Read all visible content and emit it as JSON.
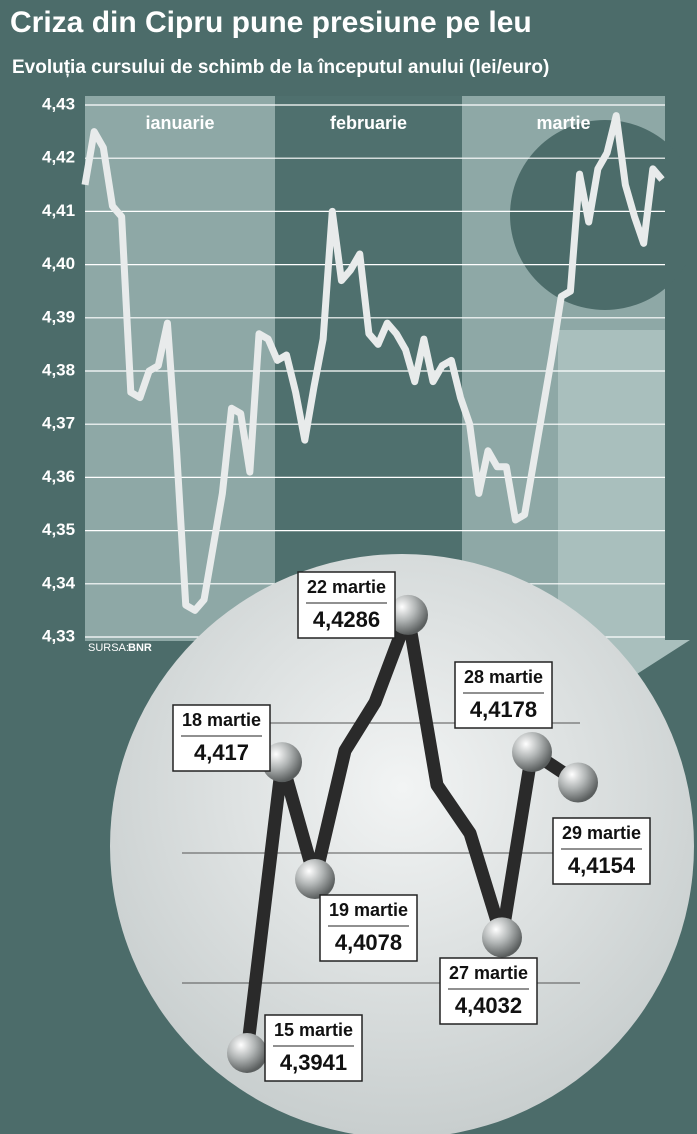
{
  "chart_data": [
    {
      "type": "line",
      "title": "Criza din Cipru pune presiune pe leu",
      "subtitle": "Evoluția cursului de schimb de la începutul anului (lei/euro)",
      "months": [
        "ianuarie",
        "februarie",
        "martie"
      ],
      "source_label": "SURSA:",
      "source": "BNR",
      "values": [
        4.415,
        4.425,
        4.422,
        4.411,
        4.409,
        4.376,
        4.375,
        4.38,
        4.381,
        4.389,
        4.365,
        4.336,
        4.335,
        4.337,
        4.347,
        4.357,
        4.373,
        4.372,
        4.361,
        4.387,
        4.386,
        4.382,
        4.383,
        4.376,
        4.367,
        4.377,
        4.386,
        4.41,
        4.397,
        4.399,
        4.402,
        4.387,
        4.385,
        4.389,
        4.387,
        4.384,
        4.378,
        4.386,
        4.378,
        4.381,
        4.382,
        4.375,
        4.37,
        4.357,
        4.365,
        4.362,
        4.362,
        4.352,
        4.353,
        4.363,
        4.373,
        4.383,
        4.394,
        4.395,
        4.417,
        4.408,
        4.418,
        4.421,
        4.428,
        4.415,
        4.409,
        4.404,
        4.418,
        4.416
      ],
      "color": "#e8ebeb",
      "ylim": [
        4.33,
        4.43
      ],
      "yticks": [
        {
          "value": 4.33,
          "label": "4,33"
        },
        {
          "value": 4.34,
          "label": "4,34"
        },
        {
          "value": 4.35,
          "label": "4,35"
        },
        {
          "value": 4.36,
          "label": "4,36"
        },
        {
          "value": 4.37,
          "label": "4,37"
        },
        {
          "value": 4.38,
          "label": "4,38"
        },
        {
          "value": 4.39,
          "label": "4,39"
        },
        {
          "value": 4.4,
          "label": "4,40"
        },
        {
          "value": 4.41,
          "label": "4,41"
        },
        {
          "value": 4.42,
          "label": "4,42"
        },
        {
          "value": 4.43,
          "label": "4,43"
        }
      ],
      "grid": true
    },
    {
      "type": "line",
      "categories": [
        "15 martie",
        "18 martie",
        "19 martie",
        null,
        null,
        "22 martie",
        null,
        null,
        "27 martie",
        "28 martie",
        "29 martie"
      ],
      "values": [
        4.3941,
        4.417,
        4.4078,
        4.4179,
        4.4217,
        4.4286,
        4.4152,
        4.4114,
        4.4032,
        4.4178,
        4.4154
      ],
      "value_labels": [
        "4,3941",
        "4,417",
        "4,4078",
        null,
        null,
        "4,4286",
        null,
        null,
        "4,4032",
        "4,4178",
        "4,4154"
      ],
      "color": "#2a2a2a",
      "ylim": [
        4.39,
        4.433
      ]
    }
  ]
}
